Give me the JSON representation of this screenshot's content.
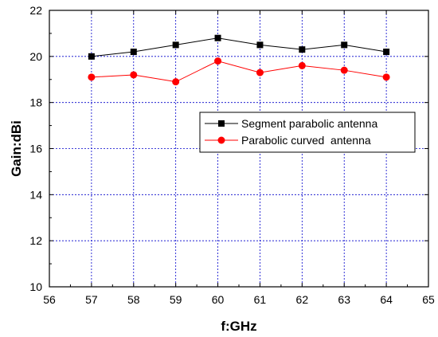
{
  "chart_data": {
    "type": "line",
    "xlabel": "f:GHz",
    "ylabel": "Gain:dBi",
    "xlim": [
      56,
      65
    ],
    "ylim": [
      10,
      22
    ],
    "xticks": [
      56,
      57,
      58,
      59,
      60,
      61,
      62,
      63,
      64,
      65
    ],
    "yticks": [
      10,
      12,
      14,
      16,
      18,
      20,
      22
    ],
    "grid": true,
    "grid_color": "#0000cc",
    "legend_position": "right-middle",
    "series": [
      {
        "name": "Segment parabolic antenna",
        "color": "#000000",
        "marker": "square",
        "x": [
          57,
          58,
          59,
          60,
          61,
          62,
          63,
          64
        ],
        "y": [
          20.0,
          20.2,
          20.5,
          20.8,
          20.5,
          20.3,
          20.5,
          20.2
        ]
      },
      {
        "name": "Parabolic curved  antenna",
        "color": "#ff0000",
        "marker": "circle",
        "x": [
          57,
          58,
          59,
          60,
          61,
          62,
          63,
          64
        ],
        "y": [
          19.1,
          19.2,
          18.9,
          19.8,
          19.3,
          19.6,
          19.4,
          19.1
        ]
      }
    ]
  }
}
